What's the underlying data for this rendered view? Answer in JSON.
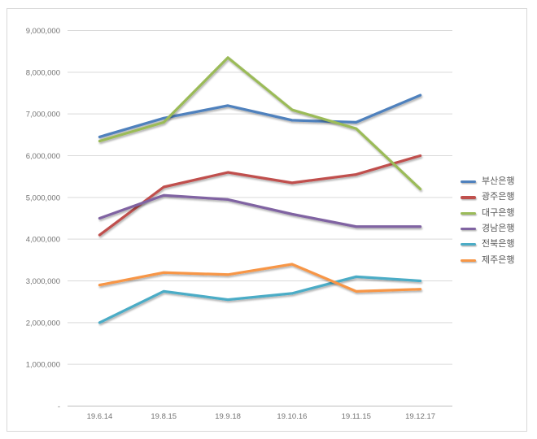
{
  "chart_data": {
    "type": "line",
    "title": "",
    "xlabel": "",
    "ylabel": "",
    "categories": [
      "19.6.14",
      "19.8.15",
      "19.9.18",
      "19.10.16",
      "19.11.15",
      "19.12.17"
    ],
    "series": [
      {
        "name": "부산은행",
        "color": "#4F81BD",
        "values": [
          6450000,
          6900000,
          7200000,
          6850000,
          6800000,
          7450000
        ]
      },
      {
        "name": "광주은행",
        "color": "#C0504D",
        "values": [
          4100000,
          5250000,
          5600000,
          5350000,
          5550000,
          6000000
        ]
      },
      {
        "name": "대구은행",
        "color": "#9BBB59",
        "values": [
          6350000,
          6800000,
          8350000,
          7100000,
          6650000,
          5200000
        ]
      },
      {
        "name": "경남은행",
        "color": "#8064A2",
        "values": [
          4500000,
          5050000,
          4950000,
          4600000,
          4300000,
          4300000
        ]
      },
      {
        "name": "전북은행",
        "color": "#4BACC6",
        "values": [
          2000000,
          2750000,
          2550000,
          2700000,
          3100000,
          3000000
        ]
      },
      {
        "name": "제주은행",
        "color": "#F79646",
        "values": [
          2900000,
          3200000,
          3150000,
          3400000,
          2750000,
          2800000
        ]
      }
    ],
    "ylim": [
      0,
      9000000
    ],
    "y_ticks": [
      {
        "value": 0,
        "label": "-"
      },
      {
        "value": 1000000,
        "label": "1,000,000"
      },
      {
        "value": 2000000,
        "label": "2,000,000"
      },
      {
        "value": 3000000,
        "label": "3,000,000"
      },
      {
        "value": 4000000,
        "label": "4,000,000"
      },
      {
        "value": 5000000,
        "label": "5,000,000"
      },
      {
        "value": 6000000,
        "label": "6,000,000"
      },
      {
        "value": 7000000,
        "label": "7,000,000"
      },
      {
        "value": 8000000,
        "label": "8,000,000"
      },
      {
        "value": 9000000,
        "label": "9,000,000"
      }
    ],
    "grid": "horizontal",
    "legend_position": "right"
  },
  "colors": {
    "background": "#ffffff",
    "frame_border": "#d9d9d9",
    "gridline": "#d9d9d9",
    "axis_line": "#bfbfbf",
    "axis_label_text": "#737373",
    "legend_text": "#595959"
  }
}
